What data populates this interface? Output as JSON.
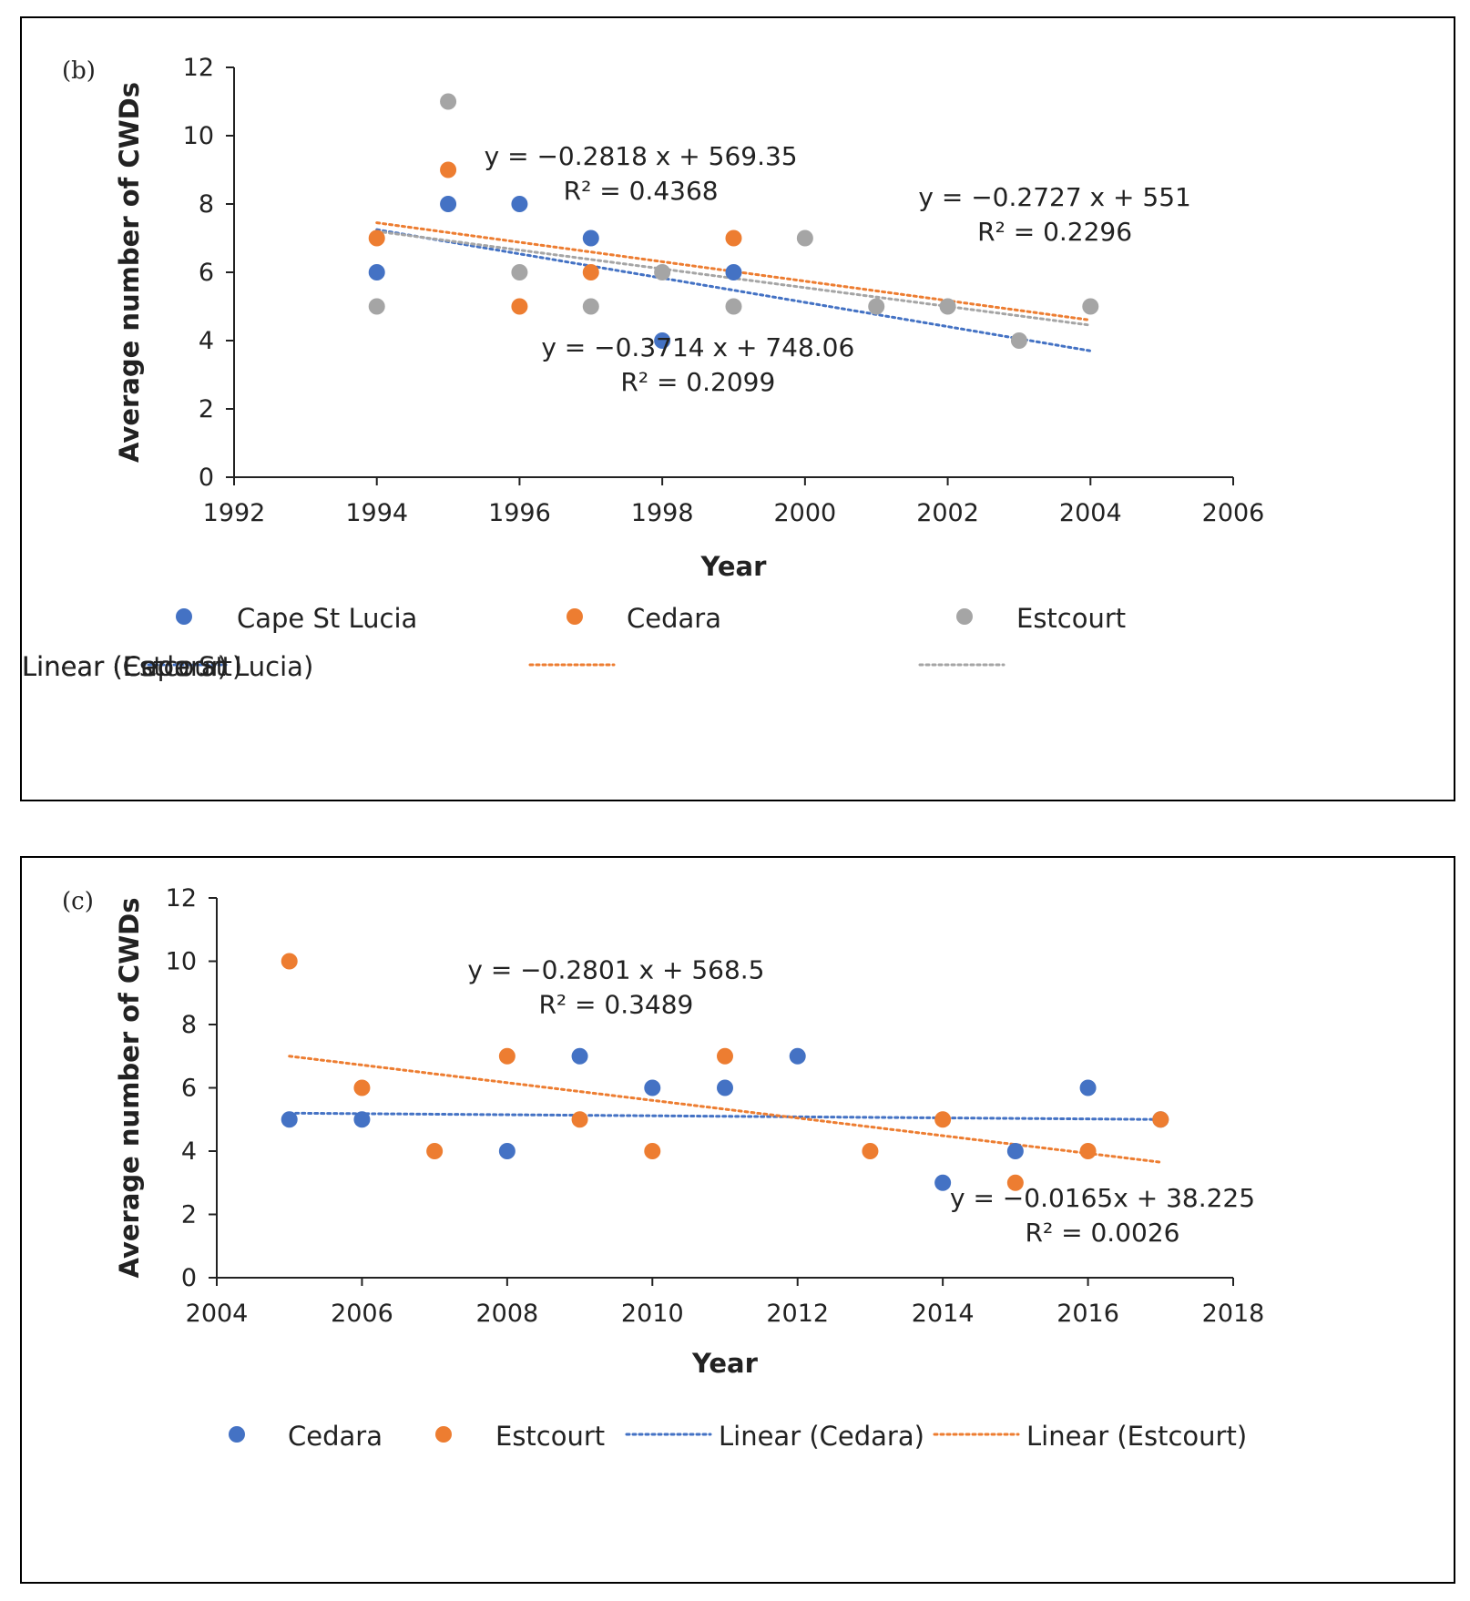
{
  "chart_data": [
    {
      "type": "scatter",
      "panel_label": "(b)",
      "xlabel": "Year",
      "ylabel": "Average number of CWDs",
      "xlim": [
        1992,
        2006
      ],
      "ylim": [
        0,
        12
      ],
      "xticks": [
        1992,
        1994,
        1996,
        1998,
        2000,
        2002,
        2004,
        2006
      ],
      "yticks": [
        0,
        2,
        4,
        6,
        8,
        10,
        12
      ],
      "series": [
        {
          "name": "Cape St Lucia",
          "color": "#4472C4",
          "points": [
            [
              1994,
              6
            ],
            [
              1995,
              8
            ],
            [
              1996,
              8
            ],
            [
              1997,
              7
            ],
            [
              1998,
              4
            ],
            [
              1999,
              6
            ]
          ],
          "trend": {
            "label": "Linear (Cape St Lucia)",
            "x_range": [
              1994,
              2004
            ],
            "y_range": [
              7.25,
              3.7
            ]
          }
        },
        {
          "name": "Cedara",
          "color": "#ED7D31",
          "points": [
            [
              1994,
              7
            ],
            [
              1995,
              9
            ],
            [
              1996,
              5
            ],
            [
              1997,
              6
            ],
            [
              1999,
              7
            ]
          ],
          "trend": {
            "label": "Linear (Cedara)",
            "x_range": [
              1994,
              2004
            ],
            "y_range": [
              7.45,
              4.6
            ]
          }
        },
        {
          "name": "Estcourt",
          "color": "#A5A5A5",
          "points": [
            [
              1994,
              5
            ],
            [
              1995,
              11
            ],
            [
              1996,
              6
            ],
            [
              1997,
              5
            ],
            [
              1998,
              6
            ],
            [
              1999,
              5
            ],
            [
              2000,
              7
            ],
            [
              2001,
              5
            ],
            [
              2002,
              5
            ],
            [
              2003,
              4
            ],
            [
              2004,
              5
            ]
          ],
          "trend": {
            "label": "Linear (Estcourt)",
            "x_range": [
              1994,
              2004
            ],
            "y_range": [
              7.2,
              4.45
            ]
          }
        }
      ],
      "annotations": [
        {
          "line1": "y = −0.2818 x + 569.35",
          "line2": "R² = 0.4368",
          "x": 1997.7,
          "y": 9.15
        },
        {
          "line1": "y = −0.2727 x + 551",
          "line2": "R² = 0.2296",
          "x": 2003.5,
          "y": 7.95
        },
        {
          "line1": "y = −0.3714 x + 748.06",
          "line2": "R² = 0.2099",
          "x": 1998.5,
          "y": 3.55
        }
      ]
    },
    {
      "type": "scatter",
      "panel_label": "(c)",
      "xlabel": "Year",
      "ylabel": "Average number of CWDs",
      "xlim": [
        2004,
        2018
      ],
      "ylim": [
        0,
        12
      ],
      "xticks": [
        2004,
        2006,
        2008,
        2010,
        2012,
        2014,
        2016,
        2018
      ],
      "yticks": [
        0,
        2,
        4,
        6,
        8,
        10,
        12
      ],
      "series": [
        {
          "name": "Cedara",
          "color": "#4472C4",
          "points": [
            [
              2005,
              5
            ],
            [
              2006,
              5
            ],
            [
              2008,
              4
            ],
            [
              2009,
              7
            ],
            [
              2010,
              6
            ],
            [
              2011,
              6
            ],
            [
              2012,
              7
            ],
            [
              2014,
              3
            ],
            [
              2015,
              4
            ],
            [
              2016,
              6
            ],
            [
              2017,
              5
            ]
          ],
          "trend": {
            "label": "Linear (Cedara)",
            "x_range": [
              2005,
              2017
            ],
            "y_range": [
              5.2,
              5.0
            ]
          }
        },
        {
          "name": "Estcourt",
          "color": "#ED7D31",
          "points": [
            [
              2005,
              10
            ],
            [
              2006,
              6
            ],
            [
              2007,
              4
            ],
            [
              2008,
              7
            ],
            [
              2009,
              5
            ],
            [
              2010,
              4
            ],
            [
              2011,
              7
            ],
            [
              2013,
              4
            ],
            [
              2014,
              5
            ],
            [
              2015,
              3
            ],
            [
              2016,
              4
            ],
            [
              2017,
              5
            ]
          ],
          "trend": {
            "label": "Linear (Estcourt)",
            "x_range": [
              2005,
              2017
            ],
            "y_range": [
              7.0,
              3.65
            ]
          }
        }
      ],
      "annotations": [
        {
          "line1": "y = −0.2801 x + 568.5",
          "line2": "R² = 0.3489",
          "x": 2009.5,
          "y": 9.45
        },
        {
          "line1": "y = −0.0165x + 38.225",
          "line2": "R² = 0.0026",
          "x": 2016.2,
          "y": 2.25
        }
      ]
    }
  ]
}
